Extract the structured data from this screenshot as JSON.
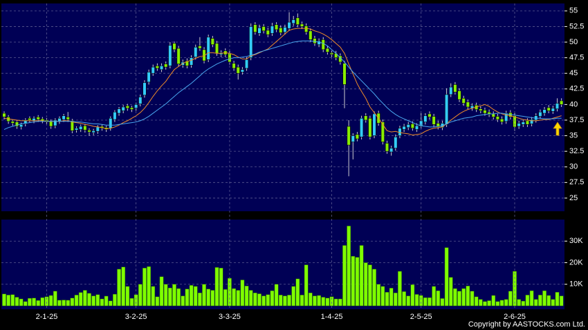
{
  "chart_data": [
    {
      "type": "candlestick",
      "up_color": "#33ccff",
      "down_color": "#88ee00",
      "ylim": [
        23,
        56.2
      ],
      "yticks": [
        25,
        27.5,
        30,
        32.5,
        35,
        37.5,
        40,
        42.5,
        45,
        47.5,
        50,
        52.5,
        55
      ],
      "grid": true,
      "open": [
        38.6,
        38.0,
        37.3,
        37.2,
        36.4,
        36.9,
        37.8,
        37.4,
        38.0,
        37.7,
        37.5,
        37.3,
        36.6,
        37.3,
        37.6,
        38.0,
        37.4,
        35.9,
        36.0,
        36.6,
        35.9,
        35.5,
        35.7,
        36.5,
        36.3,
        36.2,
        37.6,
        38.6,
        39.0,
        39.8,
        39.5,
        39.4,
        40.1,
        41.5,
        43.6,
        45.0,
        46.2,
        45.6,
        46.5,
        46.2,
        49.8,
        49.0,
        46.3,
        47.0,
        46.3,
        47.6,
        49.4,
        48.8,
        47.2,
        50.6,
        49.8,
        48.0,
        48.6,
        48.2,
        46.6,
        46.0,
        45.2,
        45.8,
        47.5,
        52.8,
        51.4,
        52.5,
        51.9,
        51.4,
        52.8,
        52.3,
        51.6,
        52.2,
        53.0,
        53.9,
        52.9,
        52.6,
        51.8,
        50.6,
        49.6,
        50.4,
        49.0,
        48.3,
        48.2,
        47.8,
        46.6,
        36.5,
        34.0,
        35.2,
        34.8,
        38.2,
        37.8,
        35.0,
        38.6,
        37.2,
        33.8,
        32.4,
        33.0,
        35.0,
        36.0,
        36.3,
        36.9,
        36.0,
        36.5,
        37.2,
        38.5,
        38.1,
        37.0,
        36.3,
        36.8,
        41.6,
        43.2,
        42.2,
        41.0,
        40.4,
        39.4,
        39.9,
        39.3,
        39.1,
        38.8,
        38.5,
        38.1,
        37.7,
        37.3,
        38.7,
        38.2,
        36.5,
        36.8,
        37.4,
        36.9,
        37.5,
        38.1,
        38.6,
        39.5,
        38.9,
        39.3,
        40.6
      ],
      "high": [
        38.9,
        38.3,
        37.6,
        37.5,
        37.1,
        37.8,
        38.1,
        38.1,
        38.3,
        38.0,
        37.8,
        37.6,
        37.8,
        38.1,
        38.5,
        38.8,
        37.7,
        36.5,
        36.8,
        36.9,
        36.2,
        36.1,
        36.7,
        36.8,
        36.6,
        38.1,
        39.1,
        39.6,
        39.9,
        40.1,
        39.8,
        40.3,
        41.6,
        43.9,
        45.6,
        46.4,
        46.6,
        46.6,
        46.9,
        50.0,
        50.1,
        49.4,
        47.2,
        47.4,
        47.9,
        49.6,
        50.8,
        49.2,
        51.2,
        51.0,
        50.2,
        48.7,
        49.0,
        48.6,
        47.0,
        46.4,
        46.0,
        47.6,
        53.0,
        53.2,
        52.8,
        52.9,
        52.3,
        53.1,
        53.2,
        52.7,
        52.8,
        54.8,
        54.2,
        54.6,
        53.3,
        53.0,
        52.2,
        51.0,
        50.6,
        50.8,
        49.4,
        48.7,
        48.6,
        48.2,
        47.0,
        37.5,
        35.4,
        35.6,
        38.2,
        38.6,
        38.2,
        38.9,
        39.0,
        37.6,
        34.2,
        33.4,
        35.2,
        36.6,
        36.9,
        37.2,
        37.3,
        37.0,
        38.6,
        38.6,
        38.9,
        38.5,
        37.4,
        37.4,
        42.6,
        43.4,
        43.6,
        42.6,
        41.4,
        40.8,
        40.2,
        40.3,
        39.7,
        39.5,
        39.2,
        38.9,
        38.5,
        38.1,
        39.0,
        39.1,
        38.6,
        37.4,
        37.6,
        37.8,
        38.0,
        38.6,
        39.2,
        39.6,
        39.9,
        39.8,
        41.0,
        41.0
      ],
      "low": [
        37.6,
        36.9,
        36.6,
        36.1,
        36.0,
        36.5,
        37.1,
        37.0,
        37.2,
        37.0,
        36.8,
        36.1,
        36.2,
        36.9,
        37.2,
        37.2,
        35.4,
        35.5,
        35.6,
        35.5,
        35.0,
        35.1,
        35.3,
        35.8,
        35.6,
        35.8,
        37.2,
        38.2,
        38.6,
        39.0,
        38.8,
        39.0,
        39.7,
        41.1,
        43.2,
        44.6,
        45.4,
        45.2,
        45.6,
        45.8,
        48.4,
        46.1,
        45.9,
        45.8,
        45.9,
        47.2,
        48.6,
        46.6,
        46.8,
        49.2,
        47.8,
        47.6,
        47.6,
        46.4,
        45.4,
        44.0,
        44.8,
        45.4,
        47.1,
        51.2,
        51.0,
        51.4,
        50.8,
        51.0,
        51.6,
        51.1,
        51.2,
        51.8,
        52.6,
        52.4,
        52.1,
        51.2,
        50.0,
        49.4,
        49.2,
        48.4,
        48.0,
        47.6,
        47.1,
        46.4,
        39.4,
        28.5,
        31.2,
        34.1,
        34.4,
        37.1,
        34.4,
        34.6,
        36.6,
        33.6,
        32.1,
        31.8,
        32.6,
        34.6,
        35.6,
        35.9,
        35.8,
        35.6,
        36.1,
        36.8,
        37.6,
        36.4,
        36.0,
        35.9,
        36.4,
        41.2,
        41.6,
        40.4,
        39.8,
        39.2,
        39.0,
        38.8,
        38.6,
        38.2,
        38.0,
        37.6,
        37.2,
        36.8,
        36.9,
        37.6,
        35.8,
        36.1,
        36.4,
        36.4,
        36.5,
        37.1,
        37.7,
        38.2,
        38.6,
        38.5,
        38.9,
        39.6
      ],
      "close": [
        38.0,
        37.3,
        37.0,
        36.5,
        36.8,
        37.5,
        37.5,
        37.8,
        37.6,
        37.4,
        37.2,
        36.5,
        37.5,
        37.8,
        38.2,
        37.6,
        35.8,
        36.2,
        36.5,
        35.9,
        35.6,
        35.8,
        36.4,
        36.2,
        36.0,
        37.8,
        38.8,
        39.3,
        39.6,
        39.4,
        39.2,
        40.0,
        41.2,
        43.5,
        45.2,
        46.0,
        45.8,
        46.2,
        46.0,
        49.5,
        48.8,
        46.5,
        46.8,
        46.2,
        47.5,
        49.2,
        49.0,
        47.0,
        50.8,
        49.6,
        48.2,
        48.3,
        48.0,
        46.8,
        45.8,
        45.0,
        45.6,
        47.2,
        52.5,
        51.6,
        52.3,
        51.8,
        51.2,
        52.6,
        52.0,
        51.5,
        52.4,
        53.2,
        53.6,
        52.8,
        52.5,
        51.6,
        50.4,
        49.8,
        50.2,
        48.8,
        48.4,
        48.0,
        47.5,
        46.8,
        43.2,
        33.5,
        35.0,
        34.5,
        37.8,
        37.5,
        34.8,
        38.5,
        37.0,
        34.0,
        32.5,
        33.0,
        34.8,
        36.2,
        36.5,
        36.8,
        36.2,
        36.6,
        37.4,
        38.2,
        38.0,
        36.8,
        36.4,
        37.0,
        41.6,
        42.8,
        42.0,
        40.8,
        40.2,
        39.6,
        39.8,
        39.2,
        39.0,
        38.6,
        38.4,
        38.0,
        37.6,
        37.2,
        38.6,
        38.0,
        36.4,
        37.0,
        37.2,
        36.8,
        37.6,
        38.2,
        38.8,
        39.2,
        39.0,
        39.4,
        40.2,
        40.0
      ],
      "series": [
        {
          "color": "#f08c28",
          "values": [
            37.8,
            37.7,
            37.6,
            37.5,
            37.4,
            37.4,
            37.4,
            37.4,
            37.4,
            37.4,
            37.3,
            37.3,
            37.3,
            37.3,
            37.4,
            37.4,
            37.2,
            37.1,
            37.0,
            36.8,
            36.7,
            36.5,
            36.4,
            36.3,
            36.1,
            36.2,
            36.4,
            36.7,
            37.1,
            37.4,
            37.8,
            38.2,
            38.7,
            39.4,
            40.3,
            41.3,
            42.2,
            43.0,
            43.7,
            44.7,
            45.6,
            46.1,
            46.6,
            46.9,
            47.1,
            47.4,
            47.7,
            47.8,
            48.3,
            48.3,
            48.2,
            48.2,
            48.3,
            48.2,
            48.0,
            47.6,
            47.3,
            47.3,
            47.8,
            48.0,
            48.3,
            48.6,
            48.9,
            49.5,
            50.1,
            50.7,
            51.3,
            51.9,
            52.1,
            52.2,
            52.2,
            52.2,
            52.1,
            51.8,
            51.6,
            51.3,
            50.9,
            50.4,
            49.8,
            49.2,
            48.2,
            46.5,
            44.9,
            43.3,
            42.1,
            41.0,
            39.6,
            38.7,
            37.8,
            36.8,
            35.8,
            35.6,
            35.7,
            35.5,
            35.4,
            35.3,
            35.1,
            35.2,
            35.3,
            35.7,
            36.0,
            36.2,
            36.3,
            36.4,
            36.9,
            37.5,
            38.0,
            38.5,
            38.9,
            39.2,
            39.4,
            39.6,
            39.8,
            40.0,
            39.7,
            39.2,
            38.8,
            38.5,
            38.3,
            38.2,
            38.0,
            37.8,
            37.6,
            37.5,
            37.4,
            37.4,
            37.5,
            37.6,
            37.6,
            37.8,
            38.0,
            38.2
          ]
        },
        {
          "color": "#4aa8f0",
          "values": [
            36.0,
            36.3,
            36.5,
            36.7,
            36.9,
            37.0,
            37.1,
            37.2,
            37.3,
            37.3,
            37.3,
            37.3,
            37.3,
            37.3,
            37.3,
            37.3,
            37.3,
            37.2,
            37.2,
            37.1,
            37.0,
            36.9,
            36.9,
            36.8,
            36.7,
            36.7,
            36.7,
            36.8,
            36.9,
            37.0,
            37.1,
            37.2,
            37.4,
            37.7,
            38.1,
            38.6,
            39.1,
            39.6,
            40.1,
            40.7,
            41.3,
            41.9,
            42.4,
            42.9,
            43.4,
            44.0,
            44.6,
            45.2,
            45.7,
            46.1,
            46.5,
            46.8,
            47.1,
            47.3,
            47.5,
            47.5,
            47.6,
            47.7,
            47.9,
            48.1,
            48.4,
            48.6,
            48.8,
            49.0,
            49.2,
            49.4,
            49.6,
            49.8,
            50.0,
            50.1,
            50.2,
            50.2,
            50.2,
            50.1,
            50.0,
            49.8,
            49.4,
            48.8,
            48.2,
            47.5,
            46.8,
            46.0,
            45.2,
            44.5,
            43.8,
            43.1,
            42.4,
            41.7,
            40.9,
            40.2,
            39.5,
            38.9,
            38.4,
            38.0,
            37.7,
            37.4,
            37.1,
            36.8,
            36.6,
            36.5,
            36.4,
            36.4,
            36.5,
            36.6,
            36.9,
            37.2,
            37.4,
            37.6,
            37.8,
            37.9,
            38.0,
            38.2,
            38.3,
            38.4,
            38.5,
            38.5,
            38.6,
            38.6,
            38.5,
            38.4,
            38.3,
            38.2,
            38.1,
            38.0,
            37.9,
            37.8,
            37.8,
            37.7,
            37.7,
            37.7,
            37.8,
            37.8
          ]
        }
      ]
    },
    {
      "type": "bar",
      "color": "#7fff00",
      "ylim": [
        0,
        40000
      ],
      "yticks": [
        {
          "value": 10000,
          "label": "10K"
        },
        {
          "value": 20000,
          "label": "20K"
        },
        {
          "value": 30000,
          "label": "30K"
        }
      ],
      "grid": true,
      "categories": [
        null,
        null,
        null,
        null,
        null,
        null,
        null,
        null,
        null,
        null,
        "2-1-25",
        null,
        null,
        null,
        null,
        null,
        null,
        null,
        null,
        null,
        null,
        null,
        null,
        null,
        null,
        null,
        null,
        null,
        null,
        null,
        null,
        "3-2-25",
        null,
        null,
        null,
        null,
        null,
        null,
        null,
        null,
        null,
        null,
        null,
        null,
        null,
        null,
        null,
        null,
        null,
        null,
        null,
        null,
        null,
        "3-3-25",
        null,
        null,
        null,
        null,
        null,
        null,
        null,
        null,
        null,
        null,
        null,
        null,
        null,
        null,
        null,
        null,
        null,
        null,
        null,
        null,
        null,
        null,
        null,
        "1-4-25",
        null,
        null,
        null,
        null,
        null,
        null,
        null,
        null,
        null,
        null,
        null,
        null,
        null,
        null,
        null,
        null,
        null,
        null,
        null,
        null,
        "2-5-25",
        null,
        null,
        null,
        null,
        null,
        null,
        null,
        null,
        null,
        null,
        null,
        null,
        null,
        null,
        null,
        null,
        null,
        null,
        null,
        null,
        null,
        "2-6-25",
        null,
        null,
        null,
        null,
        null,
        null,
        null,
        null,
        null,
        null,
        null
      ],
      "values": [
        5500,
        5000,
        5200,
        4000,
        3200,
        2000,
        3500,
        3600,
        2500,
        3800,
        4200,
        4800,
        6800,
        2600,
        2700,
        2600,
        3600,
        5000,
        6200,
        7200,
        5800,
        4600,
        5200,
        3200,
        4500,
        2300,
        5400,
        17000,
        18000,
        9000,
        3500,
        5200,
        10000,
        17500,
        18200,
        9000,
        4200,
        13500,
        10000,
        8300,
        10000,
        8000,
        4600,
        7800,
        9500,
        9000,
        6000,
        10000,
        7800,
        7200,
        17800,
        17500,
        7600,
        12800,
        8000,
        7200,
        12000,
        9200,
        7200,
        6000,
        5600,
        4600,
        5200,
        7000,
        10000,
        5000,
        4600,
        5000,
        9000,
        12500,
        5000,
        19000,
        6000,
        4600,
        4800,
        4000,
        3600,
        4200,
        3200,
        3200,
        28000,
        37000,
        23000,
        22500,
        28000,
        20000,
        19000,
        17000,
        10000,
        9000,
        6300,
        8200,
        6000,
        16000,
        6600,
        4600,
        9800,
        5300,
        4800,
        3800,
        3800,
        9000,
        7000,
        3400,
        27000,
        13200,
        8000,
        6800,
        8000,
        9200,
        6800,
        4200,
        3000,
        2000,
        2400,
        4800,
        2000,
        2600,
        3000,
        6800,
        16000,
        3000,
        2200,
        5000,
        7000,
        3000,
        5000,
        7000,
        4800,
        3000,
        6300,
        4600
      ]
    }
  ],
  "copyright": "Copyright by AASTOCKS.com Ltd."
}
